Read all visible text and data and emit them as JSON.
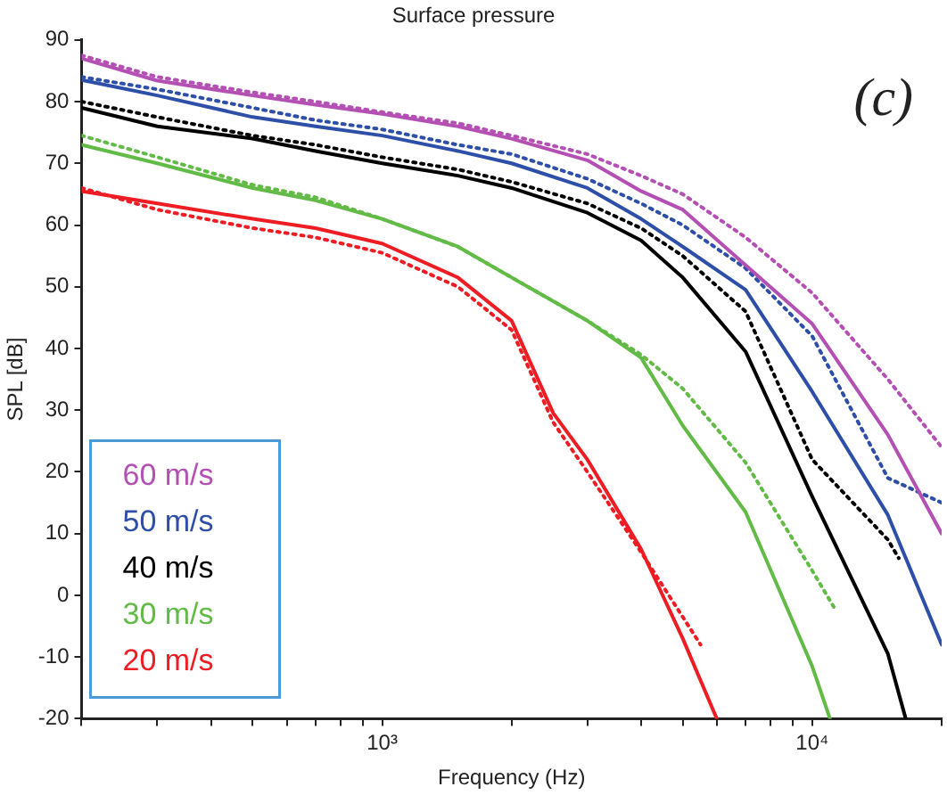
{
  "chart_data": {
    "type": "line",
    "title": "Surface pressure",
    "xlabel": "Frequency (Hz)",
    "ylabel": "SPL [dB]",
    "annotations": [
      "(c)"
    ],
    "log": "x",
    "xlim": [
      200,
      20000
    ],
    "ylim": [
      -20,
      90
    ],
    "xticks": [
      {
        "value": 200,
        "label": null
      },
      {
        "value": 300,
        "label": null
      },
      {
        "value": 400,
        "label": null
      },
      {
        "value": 500,
        "label": null
      },
      {
        "value": 600,
        "label": null
      },
      {
        "value": 700,
        "label": null
      },
      {
        "value": 800,
        "label": null
      },
      {
        "value": 900,
        "label": null
      },
      {
        "value": 1000,
        "label": "10³"
      },
      {
        "value": 2000,
        "label": null
      },
      {
        "value": 3000,
        "label": null
      },
      {
        "value": 4000,
        "label": null
      },
      {
        "value": 5000,
        "label": null
      },
      {
        "value": 6000,
        "label": null
      },
      {
        "value": 7000,
        "label": null
      },
      {
        "value": 8000,
        "label": null
      },
      {
        "value": 9000,
        "label": null
      },
      {
        "value": 10000,
        "label": "10⁴"
      },
      {
        "value": 20000,
        "label": null
      }
    ],
    "yticks": [
      -20,
      -10,
      0,
      10,
      20,
      30,
      40,
      50,
      60,
      70,
      80,
      90
    ],
    "grid": false,
    "legend": "bottom left",
    "marker": "none",
    "series": [
      {
        "name": "60 m/s",
        "color": "#b44fb4",
        "line_style": "solid",
        "x": [
          200,
          300,
          500,
          700,
          1000,
          1500,
          2000,
          3000,
          4000,
          5000,
          7000,
          10000,
          15000,
          20000
        ],
        "values": [
          87,
          83.4,
          81,
          79.5,
          78,
          76,
          74,
          70.5,
          65.5,
          62.5,
          53.5,
          44,
          26,
          10
        ]
      },
      {
        "color": "#b44fb4",
        "line_style": "dotted",
        "x": [
          200,
          300,
          500,
          700,
          1000,
          1500,
          2000,
          3000,
          4000,
          5000,
          7000,
          10000,
          15000,
          20000
        ],
        "values": [
          87.5,
          84,
          81.5,
          80,
          78.3,
          76.5,
          74.5,
          71.5,
          68,
          65,
          58,
          49,
          35,
          24
        ]
      },
      {
        "name": "50 m/s",
        "color": "#2e4fa8",
        "line_style": "solid",
        "x": [
          200,
          300,
          500,
          700,
          1000,
          1500,
          2000,
          3000,
          4000,
          5000,
          7000,
          10000,
          15000,
          20000
        ],
        "values": [
          83.5,
          81,
          77.5,
          76,
          74.5,
          72,
          70,
          66,
          61,
          56.5,
          49.5,
          33,
          13,
          -8
        ]
      },
      {
        "color": "#2e4fa8",
        "line_style": "dotted",
        "x": [
          200,
          300,
          500,
          700,
          1000,
          1500,
          2000,
          3000,
          4000,
          5000,
          7000,
          10000,
          15000,
          20000
        ],
        "values": [
          84,
          82,
          79,
          77,
          75.5,
          73,
          71.5,
          67.5,
          63.5,
          60,
          53,
          42,
          19,
          15
        ]
      },
      {
        "name": "40 m/s",
        "color": "#000000",
        "line_style": "solid",
        "x": [
          200,
          300,
          500,
          700,
          1000,
          1500,
          2000,
          3000,
          4000,
          5000,
          7000,
          10000,
          15000,
          16500
        ],
        "values": [
          79,
          76,
          74,
          72,
          70,
          68,
          66,
          62,
          57.5,
          51.5,
          39.5,
          16,
          -9.5,
          -20
        ]
      },
      {
        "color": "#000000",
        "line_style": "dotted",
        "x": [
          200,
          300,
          500,
          700,
          1000,
          1500,
          2000,
          3000,
          4000,
          5000,
          7000,
          10000,
          15000,
          15900
        ],
        "values": [
          80,
          77.5,
          74.5,
          73,
          71,
          69,
          67,
          63.5,
          59.5,
          55,
          46,
          22,
          9,
          6
        ]
      },
      {
        "name": "30 m/s",
        "color": "#62bb46",
        "line_style": "solid",
        "x": [
          200,
          300,
          500,
          700,
          1000,
          1500,
          2000,
          3000,
          4000,
          5000,
          7000,
          10000,
          11000
        ],
        "values": [
          73,
          70,
          66,
          64,
          61,
          56.5,
          51.5,
          44.5,
          38.5,
          27.5,
          13.5,
          -11.5,
          -20
        ]
      },
      {
        "color": "#62bb46",
        "line_style": "dotted",
        "x": [
          200,
          300,
          500,
          700,
          1000,
          1500,
          2000,
          3000,
          4000,
          5000,
          7000,
          10000,
          11250
        ],
        "values": [
          74.5,
          71,
          66.5,
          64.5,
          61,
          56.5,
          51.5,
          44.5,
          39,
          33.5,
          21.5,
          4,
          -2
        ]
      },
      {
        "name": "20 m/s",
        "color": "#ee1d23",
        "line_style": "solid",
        "x": [
          200,
          300,
          500,
          700,
          1000,
          1500,
          2000,
          2500,
          3000,
          4000,
          5000,
          6000
        ],
        "values": [
          65.5,
          63.5,
          61,
          59.5,
          57,
          51.5,
          44.5,
          29.5,
          22,
          7.5,
          -7,
          -20
        ]
      },
      {
        "color": "#ee1d23",
        "line_style": "dotted",
        "x": [
          200,
          300,
          500,
          700,
          1000,
          1500,
          2000,
          2500,
          3000,
          4000,
          5500
        ],
        "values": [
          66,
          62.5,
          59.5,
          58,
          55.5,
          50,
          43,
          28,
          20,
          7,
          -8
        ]
      }
    ]
  }
}
